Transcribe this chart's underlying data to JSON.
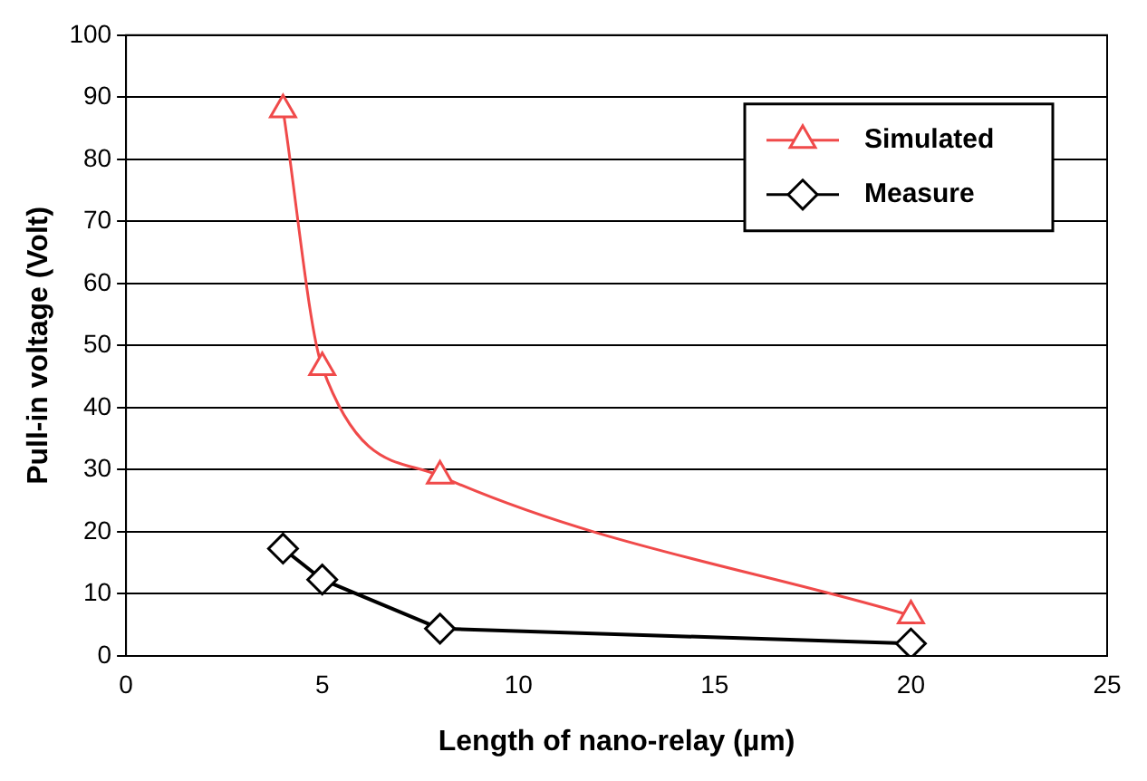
{
  "chart_data": {
    "type": "line",
    "xlabel": "Length of nano-relay (µm)",
    "ylabel": "Pull-in voltage (Volt)",
    "xlim": [
      0,
      25
    ],
    "xticks": [
      0,
      5,
      10,
      15,
      20,
      25
    ],
    "ylim": [
      0,
      100
    ],
    "yticks": [
      0,
      10,
      20,
      30,
      40,
      50,
      60,
      70,
      80,
      90,
      100
    ],
    "grid": "y",
    "legend": "top right",
    "series": [
      {
        "name": "Simulated",
        "color": "#f04a4a",
        "marker": "triangle",
        "x": [
          4,
          5,
          8,
          20
        ],
        "values": [
          88,
          46.5,
          29,
          6.5
        ]
      },
      {
        "name": "Measure",
        "color": "#000000",
        "marker": "diamond",
        "x": [
          4,
          5,
          8,
          20
        ],
        "values": [
          17.3,
          12.3,
          4.4,
          2
        ]
      }
    ]
  }
}
